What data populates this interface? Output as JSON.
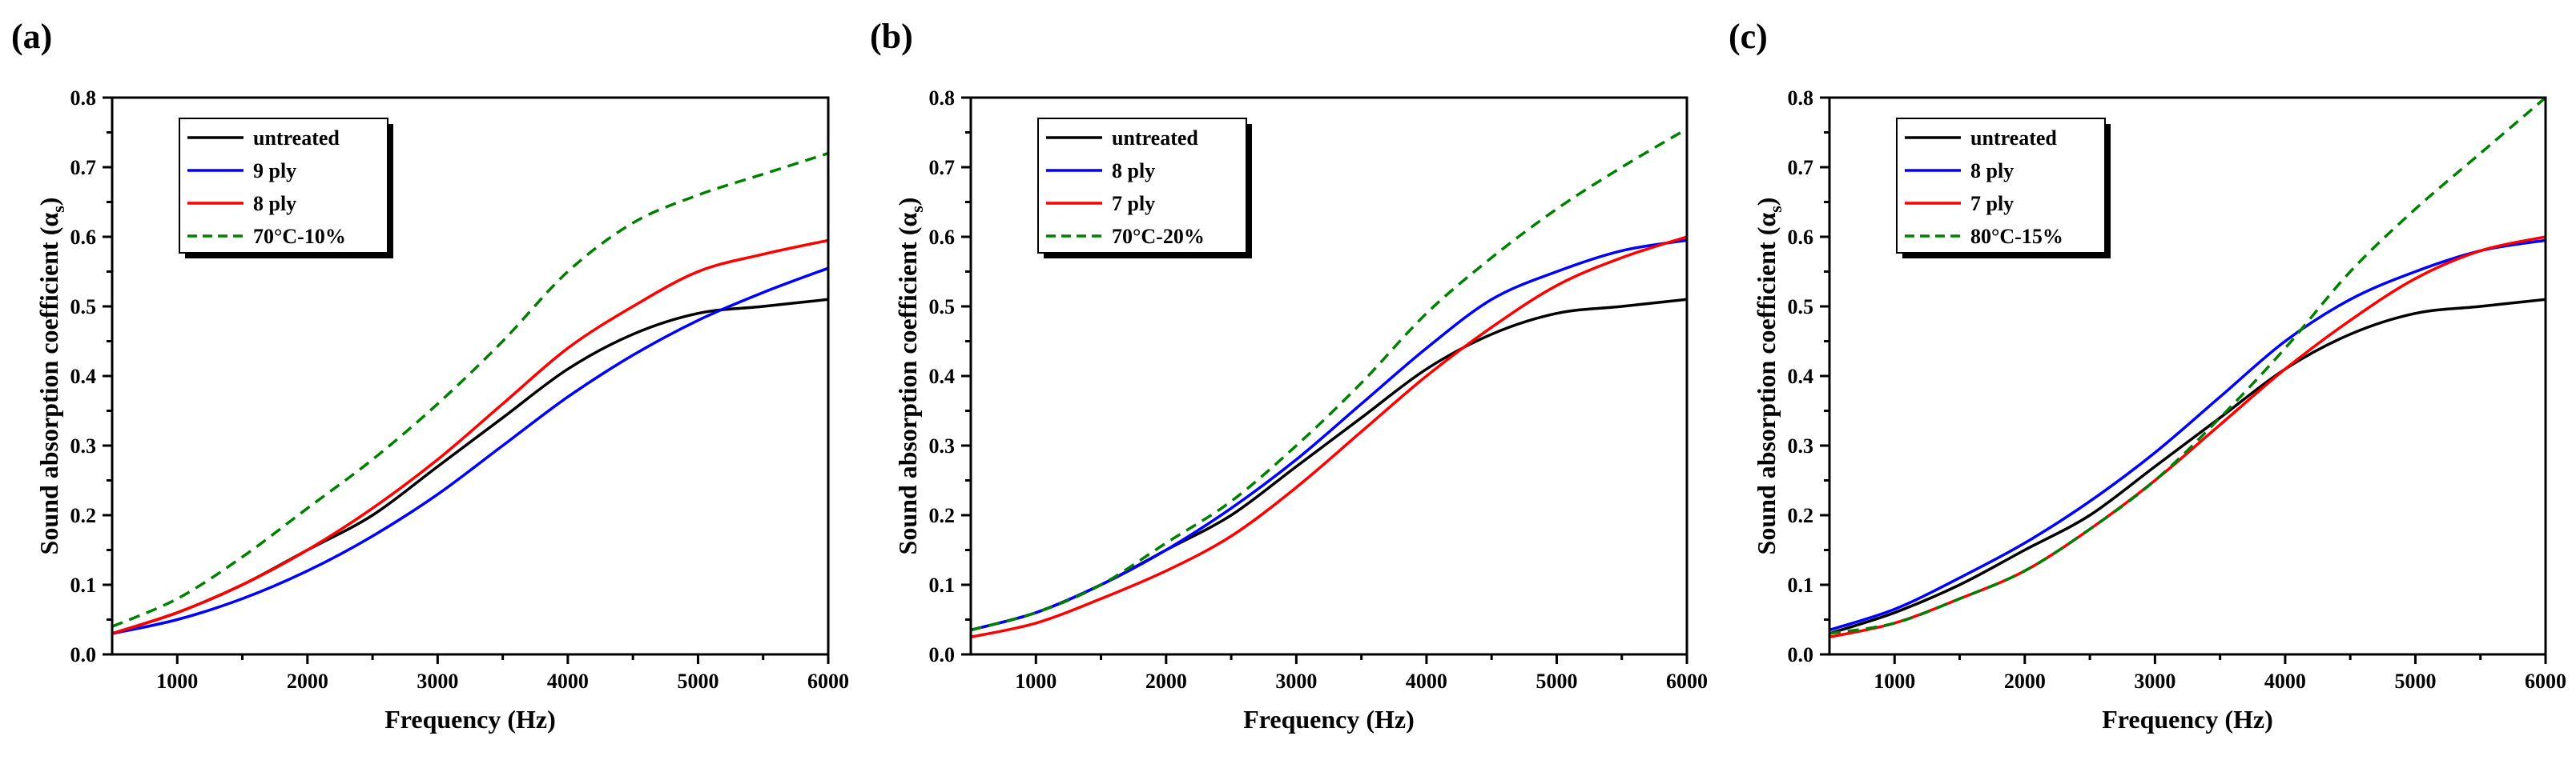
{
  "chart_data": [
    {
      "panel_label": "(a)",
      "type": "line",
      "xlabel": "Frequency (Hz)",
      "ylabel": "Sound absorption coefficient (α",
      "ylabel_sub": "s",
      "ylabel_close": ")",
      "xlim": [
        500,
        6000
      ],
      "ylim": [
        0,
        0.8
      ],
      "xticks": [
        "1000",
        "2000",
        "3000",
        "4000",
        "5000",
        "6000"
      ],
      "yticks": [
        "0.0",
        "0.1",
        "0.2",
        "0.3",
        "0.4",
        "0.5",
        "0.6",
        "0.7",
        "0.8"
      ],
      "legend_position": "top-left",
      "x": [
        500,
        1000,
        1500,
        2000,
        2500,
        3000,
        3500,
        4000,
        4500,
        5000,
        5500,
        6000
      ],
      "series": [
        {
          "name": "untreated",
          "color": "#000000",
          "dash": "solid",
          "values": [
            0.03,
            0.06,
            0.1,
            0.15,
            0.2,
            0.27,
            0.34,
            0.41,
            0.46,
            0.49,
            0.5,
            0.51
          ]
        },
        {
          "name": "9 ply",
          "color": "#0000ff",
          "dash": "solid",
          "values": [
            0.03,
            0.05,
            0.08,
            0.12,
            0.17,
            0.23,
            0.3,
            0.37,
            0.43,
            0.48,
            0.52,
            0.555
          ]
        },
        {
          "name": "8 ply",
          "color": "#ff0000",
          "dash": "solid",
          "values": [
            0.03,
            0.06,
            0.1,
            0.15,
            0.21,
            0.28,
            0.36,
            0.44,
            0.5,
            0.55,
            0.575,
            0.595
          ]
        },
        {
          "name": "70°C-10%",
          "color": "#008000",
          "dash": "dashed",
          "values": [
            0.04,
            0.08,
            0.14,
            0.21,
            0.28,
            0.36,
            0.45,
            0.55,
            0.62,
            0.66,
            0.69,
            0.72
          ]
        }
      ]
    },
    {
      "panel_label": "(b)",
      "type": "line",
      "xlabel": "Frequency (Hz)",
      "ylabel": "Sound absorption coefficient (α",
      "ylabel_sub": "s",
      "ylabel_close": ")",
      "xlim": [
        500,
        6000
      ],
      "ylim": [
        0,
        0.8
      ],
      "xticks": [
        "1000",
        "2000",
        "3000",
        "4000",
        "5000",
        "6000"
      ],
      "yticks": [
        "0.0",
        "0.1",
        "0.2",
        "0.3",
        "0.4",
        "0.5",
        "0.6",
        "0.7",
        "0.8"
      ],
      "legend_position": "top-left",
      "x": [
        500,
        1000,
        1500,
        2000,
        2500,
        3000,
        3500,
        4000,
        4500,
        5000,
        5500,
        6000
      ],
      "series": [
        {
          "name": "untreated",
          "color": "#000000",
          "dash": "solid",
          "values": [
            0.035,
            0.06,
            0.1,
            0.15,
            0.2,
            0.27,
            0.34,
            0.41,
            0.46,
            0.49,
            0.5,
            0.51
          ]
        },
        {
          "name": "8 ply",
          "color": "#0000ff",
          "dash": "solid",
          "values": [
            0.035,
            0.06,
            0.1,
            0.15,
            0.21,
            0.28,
            0.36,
            0.44,
            0.51,
            0.55,
            0.58,
            0.595
          ]
        },
        {
          "name": "7 ply",
          "color": "#ff0000",
          "dash": "solid",
          "values": [
            0.025,
            0.045,
            0.08,
            0.12,
            0.17,
            0.24,
            0.32,
            0.4,
            0.47,
            0.53,
            0.57,
            0.6
          ]
        },
        {
          "name": "70°C-20%",
          "color": "#008000",
          "dash": "dashed",
          "values": [
            0.035,
            0.06,
            0.1,
            0.16,
            0.22,
            0.3,
            0.39,
            0.49,
            0.57,
            0.64,
            0.7,
            0.755
          ]
        }
      ]
    },
    {
      "panel_label": "(c)",
      "type": "line",
      "xlabel": "Frequency (Hz)",
      "ylabel": "Sound absorption coefficient (α",
      "ylabel_sub": "s",
      "ylabel_close": ")",
      "xlim": [
        500,
        6000
      ],
      "ylim": [
        0,
        0.8
      ],
      "xticks": [
        "1000",
        "2000",
        "3000",
        "4000",
        "5000",
        "6000"
      ],
      "yticks": [
        "0.0",
        "0.1",
        "0.2",
        "0.3",
        "0.4",
        "0.5",
        "0.6",
        "0.7",
        "0.8"
      ],
      "legend_position": "top-left",
      "x": [
        500,
        1000,
        1500,
        2000,
        2500,
        3000,
        3500,
        4000,
        4500,
        5000,
        5500,
        6000
      ],
      "series": [
        {
          "name": "untreated",
          "color": "#000000",
          "dash": "solid",
          "values": [
            0.03,
            0.06,
            0.1,
            0.15,
            0.2,
            0.27,
            0.34,
            0.41,
            0.46,
            0.49,
            0.5,
            0.51
          ]
        },
        {
          "name": "8 ply",
          "color": "#0000ff",
          "dash": "solid",
          "values": [
            0.035,
            0.065,
            0.11,
            0.16,
            0.22,
            0.29,
            0.37,
            0.45,
            0.51,
            0.55,
            0.58,
            0.595
          ]
        },
        {
          "name": "7 ply",
          "color": "#ff0000",
          "dash": "solid",
          "values": [
            0.025,
            0.045,
            0.08,
            0.12,
            0.18,
            0.25,
            0.33,
            0.41,
            0.48,
            0.54,
            0.58,
            0.6
          ]
        },
        {
          "name": "80°C-15%",
          "color": "#008000",
          "dash": "dashed",
          "values": [
            0.03,
            0.045,
            0.08,
            0.12,
            0.18,
            0.25,
            0.34,
            0.44,
            0.55,
            0.64,
            0.72,
            0.8
          ]
        }
      ]
    }
  ]
}
